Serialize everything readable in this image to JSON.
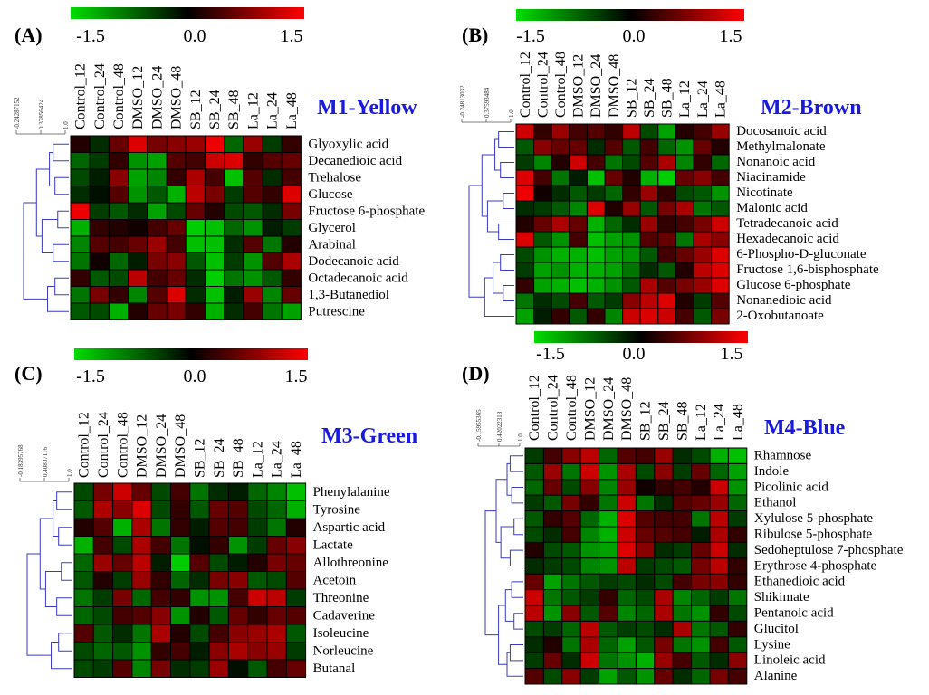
{
  "figure": {
    "colorbar_labels": [
      "-1.5",
      "0.0",
      "1.5"
    ],
    "color_low": "#00dd00",
    "color_mid": "#000000",
    "color_high": "#ff0000",
    "title_color": "#1a1adc",
    "columns": [
      "Control_12",
      "Control_24",
      "Control_48",
      "DMSO_12",
      "DMSO_24",
      "DMSO_48",
      "SB_12",
      "SB_24",
      "SB_48",
      "La_12",
      "La_24",
      "La_48"
    ]
  },
  "chart_data": [
    {
      "type": "heatmap",
      "panel": "(A)",
      "title": "M1-Yellow",
      "colorbar_range": [
        -1.5,
        1.5
      ],
      "dendrogram_scale": [
        "-0.24287152",
        "0.37856424",
        "1.0"
      ],
      "rows": [
        "Glyoxylic acid",
        "Decanedioic acid",
        "Trehalose",
        "Glucose",
        "Fructose 6-phosphate",
        "Glycerol",
        "Arabinal",
        "Dodecanoic acid",
        "Octadecanoic acid",
        "1,3-Butanediol",
        "Putrescine"
      ],
      "values": [
        [
          0.2,
          -0.3,
          0.6,
          1.3,
          0.7,
          0.8,
          0.9,
          1.4,
          -0.7,
          0.9,
          -0.4,
          0.3
        ],
        [
          -0.7,
          -0.4,
          0.3,
          -1.0,
          -1.1,
          0.5,
          0.4,
          1.2,
          1.3,
          0.3,
          0.5,
          0.6
        ],
        [
          -0.5,
          -0.2,
          0.8,
          -1.1,
          -0.9,
          0.3,
          1.0,
          0.4,
          -1.3,
          0.5,
          -0.3,
          0.4
        ],
        [
          -0.3,
          -0.1,
          0.5,
          -1.0,
          -0.6,
          -1.2,
          1.1,
          0.7,
          -0.4,
          0.5,
          0.3,
          1.3
        ],
        [
          1.4,
          -0.4,
          -0.6,
          -0.3,
          -1.1,
          -0.5,
          0.6,
          0.2,
          -0.5,
          -0.6,
          -0.3,
          0.7
        ],
        [
          -1.2,
          0.3,
          0.2,
          0.1,
          0.4,
          0.6,
          -1.4,
          -1.3,
          -0.7,
          -1.0,
          -0.2,
          -0.4
        ],
        [
          -0.9,
          0.5,
          0.4,
          0.6,
          0.9,
          0.4,
          -1.3,
          -1.3,
          -0.3,
          0.5,
          -0.8,
          0.2
        ],
        [
          -0.8,
          0.1,
          -0.7,
          -0.2,
          0.7,
          0.8,
          -0.6,
          -1.3,
          -0.4,
          -1.0,
          0.5,
          1.0
        ],
        [
          0.3,
          -0.6,
          -0.5,
          1.1,
          0.4,
          0.6,
          -0.3,
          -1.4,
          -0.8,
          -1.0,
          -0.6,
          0.3
        ],
        [
          -0.8,
          0.7,
          0.3,
          -0.9,
          0.5,
          1.3,
          -0.3,
          -1.3,
          -0.2,
          0.9,
          -0.9,
          0.6
        ],
        [
          -0.6,
          -0.5,
          -1.2,
          0.2,
          0.6,
          0.7,
          0.3,
          -1.2,
          -0.3,
          0.4,
          -0.8,
          -1.1
        ]
      ]
    },
    {
      "type": "heatmap",
      "panel": "(B)",
      "title": "M2-Brown",
      "colorbar_range": [
        -1.5,
        1.5
      ],
      "dendrogram_scale": [
        "-0.24813032",
        "0.37593484",
        "1.0"
      ],
      "rows": [
        "Docosanoic acid",
        "Methylmalonate",
        "Nonanoic acid",
        "Niacinamide",
        "Nicotinate",
        "Malonic acid",
        "Tetradecanoic acid",
        "Hexadecanoic acid",
        "6-Phospho-D-gluconate",
        "Fructose 1,6-bisphosphate",
        "Glucose 6-phosphate",
        "Nonanedioic acid",
        "2-Oxobutanoate"
      ],
      "values": [
        [
          1.2,
          0.3,
          0.9,
          0.4,
          0.5,
          0.3,
          1.1,
          -0.5,
          -1.1,
          0.2,
          0.4,
          0.9
        ],
        [
          -0.6,
          0.8,
          0.6,
          0.6,
          -0.3,
          0.5,
          -0.6,
          0.4,
          -0.7,
          -1.0,
          0.6,
          0.2
        ],
        [
          -0.4,
          -0.9,
          0.2,
          1.2,
          0.4,
          -0.8,
          -0.5,
          0.5,
          1.0,
          -0.9,
          0.3,
          -0.7
        ],
        [
          1.3,
          0.4,
          -0.8,
          -0.2,
          -1.3,
          0.6,
          0.2,
          -1.2,
          -1.4,
          0.6,
          0.8,
          0.4
        ],
        [
          1.4,
          0.1,
          -0.3,
          -0.6,
          -0.4,
          -0.7,
          0.3,
          0.9,
          0.3,
          -0.5,
          -0.6,
          -1.0
        ],
        [
          -0.3,
          -0.4,
          -0.6,
          -0.9,
          1.3,
          0.2,
          0.9,
          -0.6,
          0.7,
          1.0,
          -0.8,
          -0.6
        ],
        [
          0.2,
          0.6,
          1.0,
          0.6,
          -1.2,
          -0.7,
          -0.3,
          0.9,
          0.3,
          0.4,
          0.7,
          1.2
        ],
        [
          1.3,
          -0.6,
          -1.0,
          0.4,
          -1.3,
          -1.1,
          -1.0,
          0.5,
          0.6,
          -0.8,
          1.0,
          0.8
        ],
        [
          -0.5,
          -1.0,
          -1.2,
          -1.2,
          -1.3,
          -1.1,
          -1.0,
          -0.6,
          0.4,
          0.6,
          0.9,
          1.3
        ],
        [
          -0.4,
          -1.1,
          -1.0,
          -1.2,
          -1.2,
          -1.1,
          -0.8,
          -0.3,
          -0.6,
          0.2,
          1.1,
          1.3
        ],
        [
          0.3,
          -1.1,
          -1.2,
          -1.3,
          -1.2,
          -1.0,
          -0.6,
          1.0,
          0.5,
          0.7,
          0.9,
          1.3
        ],
        [
          -0.8,
          -0.3,
          -0.5,
          0.4,
          -0.6,
          -0.4,
          0.8,
          1.1,
          1.3,
          0.2,
          -0.4,
          0.5
        ],
        [
          -1.1,
          -0.2,
          0.3,
          -0.6,
          0.3,
          -0.9,
          1.2,
          1.3,
          1.2,
          0.4,
          -0.6,
          0.7
        ]
      ]
    },
    {
      "type": "heatmap",
      "panel": "(C)",
      "title": "M3-Green",
      "colorbar_range": [
        -1.5,
        1.5
      ],
      "dendrogram_scale": [
        "-0.18395768",
        "0.40807116",
        "1.0"
      ],
      "rows": [
        "Phenylalanine",
        "Tyrosine",
        "Aspartic acid",
        "Lactate",
        "Allothreonine",
        "Acetoin",
        "Threonine",
        "Cadaverine",
        "Isoleucine",
        "Norleucine",
        "Butanal"
      ],
      "values": [
        [
          -0.5,
          0.7,
          1.2,
          0.6,
          -0.5,
          0.4,
          -0.8,
          -0.3,
          -0.2,
          -0.7,
          -0.9,
          -1.3
        ],
        [
          -0.6,
          1.0,
          0.8,
          1.3,
          -0.5,
          0.3,
          -0.6,
          0.6,
          0.5,
          -0.5,
          -0.7,
          -1.2
        ],
        [
          0.2,
          0.5,
          -1.2,
          1.0,
          -0.8,
          0.3,
          -0.2,
          0.5,
          0.4,
          -0.4,
          -0.8,
          0.2
        ],
        [
          -1.2,
          0.4,
          -0.5,
          1.0,
          0.4,
          -0.8,
          -0.1,
          0.3,
          -1.0,
          -0.4,
          0.6,
          0.8
        ],
        [
          -0.7,
          0.9,
          0.6,
          1.1,
          -0.2,
          -1.4,
          0.5,
          -0.5,
          -0.2,
          0.2,
          0.7,
          0.6
        ],
        [
          -0.6,
          0.2,
          -0.4,
          0.9,
          0.3,
          -0.7,
          -0.3,
          0.7,
          0.8,
          -0.6,
          -0.5,
          0.5
        ],
        [
          -0.8,
          -0.4,
          0.7,
          -0.7,
          0.4,
          0.3,
          -1.0,
          -1.0,
          0.4,
          1.2,
          1.1,
          -0.4
        ],
        [
          -0.7,
          -0.5,
          0.4,
          0.5,
          0.8,
          -1.0,
          0.2,
          -0.6,
          0.6,
          0.3,
          0.6,
          0.5
        ],
        [
          0.5,
          -0.6,
          -0.3,
          -0.8,
          1.0,
          0.2,
          -0.5,
          0.4,
          0.8,
          0.9,
          1.0,
          -0.6
        ],
        [
          -0.5,
          -0.7,
          -0.6,
          -1.0,
          0.3,
          0.4,
          -0.2,
          0.8,
          1.0,
          0.8,
          0.9,
          -0.4
        ],
        [
          -0.5,
          -0.4,
          0.5,
          -0.9,
          0.7,
          -0.3,
          -0.4,
          0.9,
          -0.1,
          -0.6,
          0.4,
          0.6
        ]
      ]
    },
    {
      "type": "heatmap",
      "panel": "(D)",
      "title": "M4-Blue",
      "colorbar_range": [
        -1.5,
        1.5
      ],
      "dendrogram_scale": [
        "-0.15955365",
        "0.42022318",
        "1.0"
      ],
      "rows": [
        "Rhamnose",
        "Indole",
        "Picolinic acid",
        "Ethanol",
        "Xylulose 5-phosphate",
        "Ribulose 5-phosphate",
        "Sedoheptulose 7-phosphate",
        "Erythrose 4-phosphate",
        "Ethanedioic acid",
        "Shikimate",
        "Pentanoic acid",
        "Glucitol",
        "Lysine",
        "Linoleic acid",
        "Alanine"
      ],
      "values": [
        [
          -0.4,
          0.4,
          0.8,
          1.1,
          -0.7,
          0.5,
          0.4,
          0.9,
          -0.3,
          -0.5,
          -1.2,
          -1.3
        ],
        [
          -0.6,
          0.9,
          -0.8,
          1.2,
          -1.0,
          1.0,
          -0.5,
          0.8,
          -0.4,
          0.6,
          -0.7,
          -1.1
        ],
        [
          -0.7,
          0.6,
          -0.5,
          0.8,
          -0.9,
          0.9,
          0.1,
          0.3,
          0.4,
          0.2,
          1.2,
          -1.0
        ],
        [
          -0.4,
          -0.6,
          0.7,
          0.3,
          -0.8,
          1.2,
          -0.8,
          -0.3,
          0.5,
          0.6,
          0.9,
          -0.7
        ],
        [
          -0.6,
          0.3,
          0.5,
          -0.7,
          -1.2,
          1.3,
          0.5,
          0.4,
          0.4,
          -0.8,
          1.1,
          -0.4
        ],
        [
          -0.5,
          -0.3,
          0.4,
          -0.9,
          -1.2,
          1.2,
          0.6,
          0.5,
          0.4,
          -0.2,
          1.0,
          0.3
        ],
        [
          0.2,
          -0.5,
          -0.6,
          -1.0,
          -1.1,
          1.3,
          0.8,
          -0.3,
          -0.4,
          0.6,
          1.2,
          -0.3
        ],
        [
          -0.3,
          -0.4,
          -0.5,
          -0.9,
          -1.0,
          1.1,
          -0.4,
          -0.5,
          -0.6,
          0.7,
          1.1,
          0.3
        ],
        [
          0.6,
          -1.1,
          -0.8,
          -0.6,
          -0.4,
          -0.5,
          -0.3,
          -0.5,
          0.4,
          0.7,
          0.8,
          0.3
        ],
        [
          1.2,
          -0.8,
          -0.6,
          -0.4,
          0.3,
          -0.7,
          -0.5,
          1.0,
          -0.9,
          -0.7,
          -0.4,
          -0.8
        ],
        [
          1.1,
          -1.0,
          0.8,
          -0.6,
          0.5,
          -0.9,
          -0.7,
          1.0,
          -0.8,
          -1.0,
          0.3,
          -0.5
        ],
        [
          -0.5,
          -0.4,
          -0.7,
          1.1,
          -0.6,
          -0.4,
          -0.5,
          -0.3,
          1.0,
          -0.8,
          -0.6,
          0.3
        ],
        [
          -0.3,
          0.2,
          -0.8,
          1.0,
          -0.7,
          -1.1,
          -0.6,
          0.7,
          -0.8,
          -1.0,
          0.4,
          -0.6
        ],
        [
          -0.4,
          0.6,
          -0.3,
          1.2,
          -0.8,
          -1.0,
          -1.2,
          0.9,
          0.4,
          -0.6,
          -0.3,
          0.8
        ],
        [
          0.5,
          -0.5,
          0.8,
          -0.4,
          -1.1,
          -0.6,
          -1.0,
          0.6,
          -0.3,
          -0.7,
          0.7,
          0.4
        ]
      ]
    }
  ]
}
